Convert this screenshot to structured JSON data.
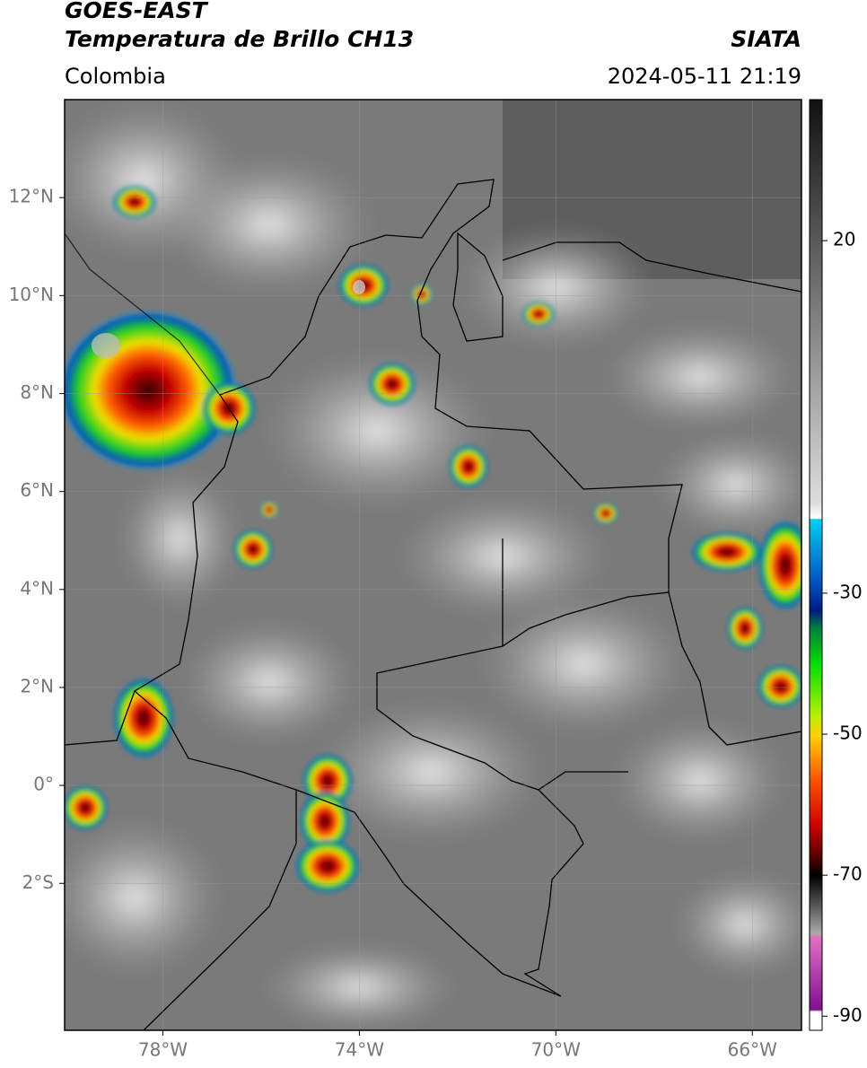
{
  "header": {
    "title_line1": "GOES-EAST",
    "title_line2": "Temperatura de Brillo CH13",
    "region": "Colombia",
    "source": "SIATA",
    "datetime": "2024-05-11 21:19"
  },
  "map": {
    "xlim": [
      -80,
      -65
    ],
    "ylim": [
      -5,
      14
    ],
    "xticks": [
      {
        "value": -78,
        "label": "78°W"
      },
      {
        "value": -74,
        "label": "74°W"
      },
      {
        "value": -70,
        "label": "70°W"
      },
      {
        "value": -66,
        "label": "66°W"
      }
    ],
    "yticks": [
      {
        "value": 12,
        "label": "12°N"
      },
      {
        "value": 10,
        "label": "10°N"
      },
      {
        "value": 8,
        "label": "8°N"
      },
      {
        "value": 6,
        "label": "6°N"
      },
      {
        "value": 4,
        "label": "4°N"
      },
      {
        "value": 2,
        "label": "2°N"
      },
      {
        "value": 0,
        "label": "0°"
      },
      {
        "value": -2,
        "label": "2°S"
      }
    ]
  },
  "colorbar": {
    "clim": [
      -92,
      40
    ],
    "ticks": [
      20,
      -30,
      -50,
      -70,
      -90
    ]
  }
}
